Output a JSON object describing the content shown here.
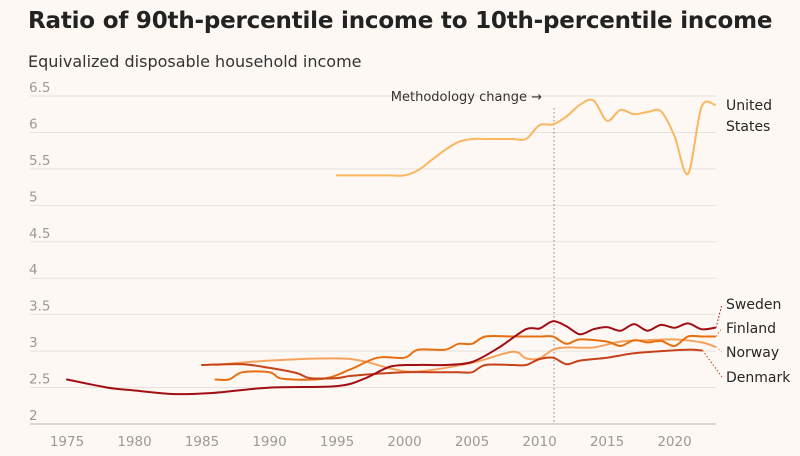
{
  "chart_data": {
    "type": "line",
    "title": "Ratio of 90th-percentile income to 10th-percentile income",
    "subtitle": "Equivalized disposable household income",
    "xlabel": "",
    "ylabel": "",
    "xlim": [
      1975,
      2023
    ],
    "ylim": [
      2,
      6.5
    ],
    "x_ticks": [
      "1975",
      "1980",
      "1985",
      "1990",
      "1995",
      "2000",
      "2005",
      "2010",
      "2015",
      "2020"
    ],
    "y_ticks": [
      "2",
      "2.5",
      "3",
      "3.5",
      "4",
      "4.5",
      "5",
      "5.5",
      "6",
      "6.5"
    ],
    "grid": "horizontal",
    "annotation": {
      "text": "Methodology change →",
      "x": 2011
    },
    "series": [
      {
        "name": "United States",
        "label_lines": [
          "United",
          "States"
        ],
        "color": "#fcb660",
        "points": [
          [
            1995,
            5.41
          ],
          [
            1996,
            5.41
          ],
          [
            1997,
            5.41
          ],
          [
            1998,
            5.41
          ],
          [
            1999,
            5.41
          ],
          [
            2000,
            5.41
          ],
          [
            2001,
            5.48
          ],
          [
            2002,
            5.62
          ],
          [
            2003,
            5.76
          ],
          [
            2004,
            5.87
          ],
          [
            2005,
            5.91
          ],
          [
            2006,
            5.91
          ],
          [
            2007,
            5.91
          ],
          [
            2008,
            5.91
          ],
          [
            2009,
            5.91
          ],
          [
            2010,
            6.1
          ],
          [
            2011,
            6.11
          ],
          [
            2012,
            6.22
          ],
          [
            2013,
            6.38
          ],
          [
            2014,
            6.44
          ],
          [
            2015,
            6.16
          ],
          [
            2016,
            6.31
          ],
          [
            2017,
            6.25
          ],
          [
            2018,
            6.28
          ],
          [
            2019,
            6.29
          ],
          [
            2020,
            5.95
          ],
          [
            2021,
            5.43
          ],
          [
            2022,
            6.35
          ],
          [
            2023,
            6.38
          ]
        ]
      },
      {
        "name": "Sweden",
        "label_lines": [
          "Sweden"
        ],
        "color": "#a10e13",
        "points": [
          [
            1975,
            2.61
          ],
          [
            1978,
            2.5
          ],
          [
            1980,
            2.46
          ],
          [
            1983,
            2.41
          ],
          [
            1986,
            2.43
          ],
          [
            1990,
            2.5
          ],
          [
            1995,
            2.52
          ],
          [
            1997,
            2.62
          ],
          [
            1999,
            2.79
          ],
          [
            2001,
            2.81
          ],
          [
            2003,
            2.81
          ],
          [
            2005,
            2.85
          ],
          [
            2007,
            3.05
          ],
          [
            2009,
            3.3
          ],
          [
            2010,
            3.31
          ],
          [
            2011,
            3.41
          ],
          [
            2012,
            3.34
          ],
          [
            2013,
            3.23
          ],
          [
            2014,
            3.3
          ],
          [
            2015,
            3.33
          ],
          [
            2016,
            3.28
          ],
          [
            2017,
            3.37
          ],
          [
            2018,
            3.28
          ],
          [
            2019,
            3.36
          ],
          [
            2020,
            3.32
          ],
          [
            2021,
            3.38
          ],
          [
            2022,
            3.3
          ],
          [
            2023,
            3.32
          ]
        ]
      },
      {
        "name": "Finland",
        "label_lines": [
          "Finland"
        ],
        "color": "#e86f10",
        "points": [
          [
            1986,
            2.61
          ],
          [
            1987,
            2.61
          ],
          [
            1988,
            2.71
          ],
          [
            1990,
            2.71
          ],
          [
            1991,
            2.62
          ],
          [
            1994,
            2.62
          ],
          [
            1996,
            2.75
          ],
          [
            1998,
            2.91
          ],
          [
            2000,
            2.91
          ],
          [
            2001,
            3.02
          ],
          [
            2003,
            3.02
          ],
          [
            2004,
            3.1
          ],
          [
            2005,
            3.1
          ],
          [
            2006,
            3.2
          ],
          [
            2008,
            3.2
          ],
          [
            2010,
            3.2
          ],
          [
            2011,
            3.2
          ],
          [
            2012,
            3.1
          ],
          [
            2013,
            3.16
          ],
          [
            2015,
            3.13
          ],
          [
            2016,
            3.07
          ],
          [
            2017,
            3.15
          ],
          [
            2018,
            3.12
          ],
          [
            2019,
            3.14
          ],
          [
            2020,
            3.07
          ],
          [
            2021,
            3.2
          ],
          [
            2022,
            3.2
          ],
          [
            2023,
            3.2
          ]
        ]
      },
      {
        "name": "Norway",
        "label_lines": [
          "Norway"
        ],
        "color": "#f5a25d",
        "points": [
          [
            1986,
            2.81
          ],
          [
            1990,
            2.87
          ],
          [
            1995,
            2.9
          ],
          [
            1997,
            2.86
          ],
          [
            1999,
            2.76
          ],
          [
            2001,
            2.72
          ],
          [
            2005,
            2.84
          ],
          [
            2008,
            2.99
          ],
          [
            2009,
            2.9
          ],
          [
            2010,
            2.9
          ],
          [
            2011,
            3.02
          ],
          [
            2012,
            3.05
          ],
          [
            2014,
            3.05
          ],
          [
            2016,
            3.13
          ],
          [
            2018,
            3.15
          ],
          [
            2020,
            3.16
          ],
          [
            2022,
            3.12
          ],
          [
            2023,
            3.06
          ]
        ]
      },
      {
        "name": "Denmark",
        "label_lines": [
          "Denmark"
        ],
        "color": "#c7421a",
        "points": [
          [
            1985,
            2.81
          ],
          [
            1988,
            2.82
          ],
          [
            1990,
            2.77
          ],
          [
            1992,
            2.7
          ],
          [
            1993,
            2.63
          ],
          [
            1995,
            2.63
          ],
          [
            1996,
            2.66
          ],
          [
            1998,
            2.69
          ],
          [
            2000,
            2.71
          ],
          [
            2002,
            2.71
          ],
          [
            2004,
            2.71
          ],
          [
            2005,
            2.71
          ],
          [
            2006,
            2.81
          ],
          [
            2008,
            2.81
          ],
          [
            2009,
            2.81
          ],
          [
            2010,
            2.89
          ],
          [
            2011,
            2.91
          ],
          [
            2012,
            2.82
          ],
          [
            2013,
            2.87
          ],
          [
            2015,
            2.91
          ],
          [
            2017,
            2.97
          ],
          [
            2019,
            3.0
          ],
          [
            2021,
            3.02
          ],
          [
            2022,
            3.01
          ]
        ]
      }
    ]
  }
}
